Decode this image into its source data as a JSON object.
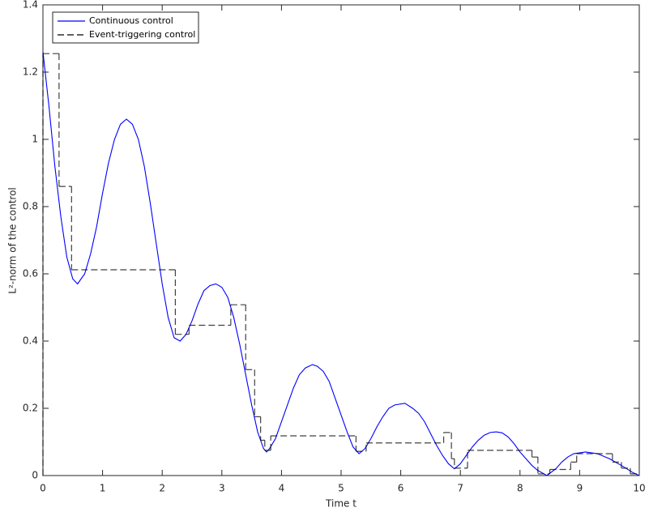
{
  "chart_data": {
    "type": "line",
    "xlabel": "Time t",
    "ylabel": "L²-norm of the control",
    "xlim": [
      0,
      10
    ],
    "ylim": [
      0,
      1.4
    ],
    "xticks": [
      0,
      1,
      2,
      3,
      4,
      5,
      6,
      7,
      8,
      9,
      10
    ],
    "yticks": [
      0,
      0.2,
      0.4,
      0.6,
      0.8,
      1,
      1.2,
      1.4
    ],
    "grid": false,
    "legend": "top-left",
    "series": [
      {
        "name": "Continuous control",
        "color": "#0000ff",
        "style": "solid",
        "x": [
          0,
          0.1,
          0.2,
          0.3,
          0.4,
          0.5,
          0.58,
          0.7,
          0.8,
          0.9,
          1.0,
          1.1,
          1.2,
          1.3,
          1.4,
          1.5,
          1.6,
          1.7,
          1.8,
          1.9,
          2.0,
          2.1,
          2.2,
          2.3,
          2.4,
          2.5,
          2.6,
          2.7,
          2.8,
          2.9,
          3.0,
          3.1,
          3.2,
          3.3,
          3.4,
          3.5,
          3.6,
          3.7,
          3.75,
          3.8,
          3.9,
          4.0,
          4.1,
          4.2,
          4.3,
          4.4,
          4.52,
          4.6,
          4.7,
          4.8,
          4.9,
          5.0,
          5.1,
          5.2,
          5.3,
          5.4,
          5.5,
          5.6,
          5.7,
          5.8,
          5.9,
          6.07,
          6.2,
          6.3,
          6.4,
          6.5,
          6.6,
          6.7,
          6.8,
          6.9,
          7.0,
          7.1,
          7.2,
          7.3,
          7.4,
          7.5,
          7.6,
          7.7,
          7.8,
          7.9,
          8.0,
          8.1,
          8.2,
          8.3,
          8.45,
          8.6,
          8.7,
          8.8,
          8.9,
          9.1,
          9.3,
          9.5,
          9.7,
          9.9,
          10
        ],
        "values": [
          1.26,
          1.1,
          0.92,
          0.77,
          0.65,
          0.585,
          0.57,
          0.6,
          0.66,
          0.74,
          0.84,
          0.93,
          1.0,
          1.045,
          1.06,
          1.045,
          1.0,
          0.92,
          0.81,
          0.69,
          0.57,
          0.47,
          0.41,
          0.4,
          0.42,
          0.46,
          0.51,
          0.55,
          0.565,
          0.57,
          0.56,
          0.53,
          0.47,
          0.39,
          0.3,
          0.21,
          0.13,
          0.08,
          0.07,
          0.08,
          0.11,
          0.16,
          0.21,
          0.26,
          0.3,
          0.32,
          0.33,
          0.325,
          0.31,
          0.28,
          0.23,
          0.18,
          0.13,
          0.085,
          0.065,
          0.08,
          0.11,
          0.145,
          0.175,
          0.2,
          0.21,
          0.215,
          0.2,
          0.185,
          0.16,
          0.125,
          0.09,
          0.06,
          0.035,
          0.02,
          0.035,
          0.06,
          0.085,
          0.105,
          0.12,
          0.128,
          0.13,
          0.127,
          0.115,
          0.095,
          0.07,
          0.05,
          0.03,
          0.015,
          0.0,
          0.02,
          0.04,
          0.055,
          0.065,
          0.07,
          0.065,
          0.05,
          0.03,
          0.008,
          0.0
        ]
      },
      {
        "name": "Event-triggering control",
        "color": "#000000",
        "style": "dashed",
        "step": "post",
        "x": [
          0,
          0.27,
          0.48,
          2.22,
          2.45,
          3.15,
          3.4,
          3.55,
          3.65,
          3.72,
          3.82,
          5.25,
          5.42,
          6.72,
          6.85,
          6.9,
          7.12,
          8.2,
          8.3,
          8.5,
          8.85,
          8.95,
          9.55,
          9.7,
          9.85
        ],
        "values": [
          1.255,
          0.86,
          0.612,
          0.42,
          0.447,
          0.508,
          0.315,
          0.175,
          0.105,
          0.075,
          0.118,
          0.072,
          0.097,
          0.128,
          0.05,
          0.022,
          0.075,
          0.055,
          0.005,
          0.018,
          0.04,
          0.065,
          0.04,
          0.022,
          0.005
        ]
      }
    ]
  }
}
